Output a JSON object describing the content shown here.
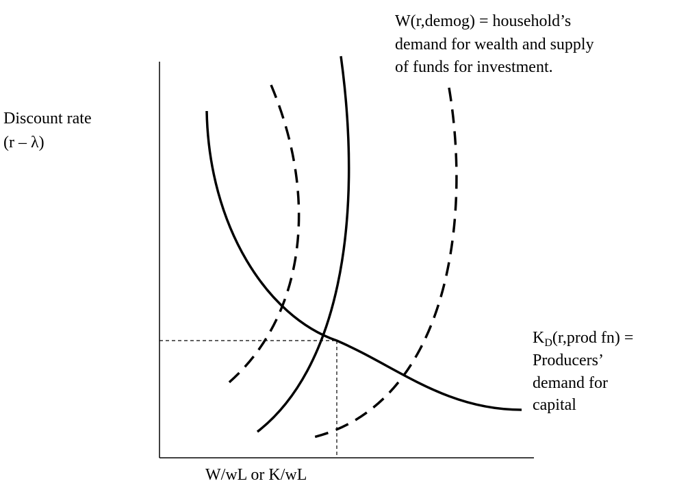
{
  "title_note": {
    "lines": [
      "W(r,demog) = household’s",
      "demand for wealth and supply",
      "of funds for investment."
    ]
  },
  "y_axis_label": {
    "lines": [
      "Discount rate",
      "(r – λ)"
    ]
  },
  "demand_note": {
    "symbol": "K",
    "subscript": "D",
    "rest": "(r,prod fn) =",
    "lines": [
      "Producers’",
      "demand for",
      "capital"
    ]
  },
  "x_axis_label": "W/wL or K/wL"
}
